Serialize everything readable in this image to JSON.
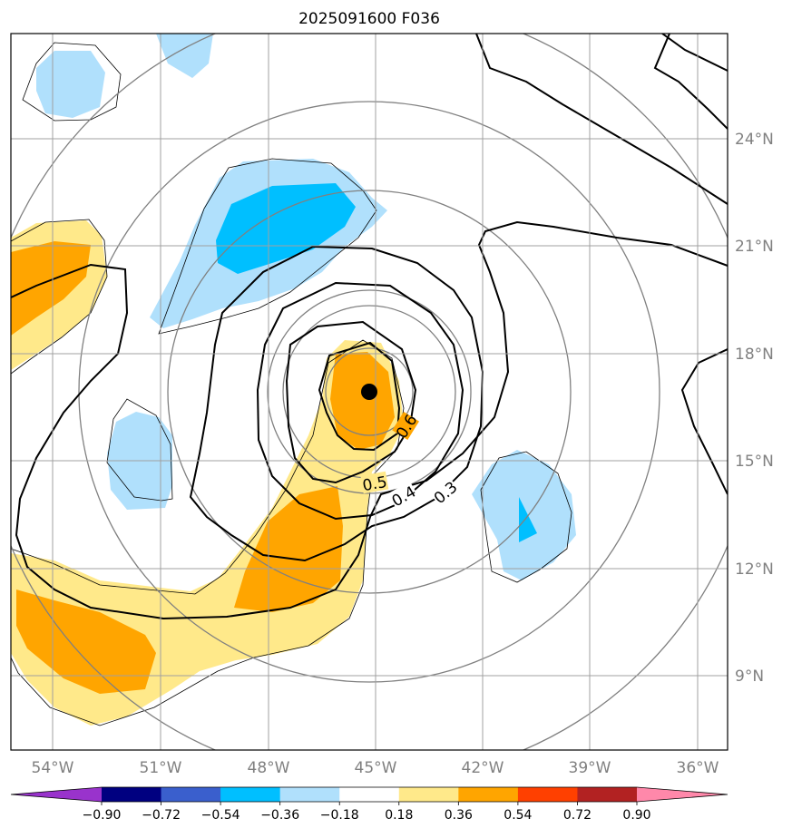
{
  "chart_data": {
    "type": "contour",
    "title": "2025091600 F036",
    "x_ticks": [
      "54°W",
      "51°W",
      "48°W",
      "45°W",
      "42°W",
      "39°W",
      "36°W"
    ],
    "x_tick_values": [
      -54,
      -51,
      -48,
      -45,
      -42,
      -39,
      -36
    ],
    "y_ticks": [
      "24°N",
      "21°N",
      "18°N",
      "15°N",
      "12°N",
      "9°N"
    ],
    "y_tick_values": [
      24,
      21,
      18,
      15,
      12,
      9
    ],
    "xlim": [
      -55.2,
      -35.2
    ],
    "ylim": [
      6.9,
      26.9
    ],
    "grid": true,
    "center_marker": {
      "lon": -45.0,
      "lat": 16.9
    },
    "range_rings_deg": [
      1,
      2,
      3,
      5,
      7,
      9
    ],
    "line_contour_labels": [
      {
        "text": "0.6",
        "lon": -44.0,
        "lat": 16.1,
        "angle": -58
      },
      {
        "text": "0.5",
        "lon": -45.2,
        "lat": 14.4,
        "angle": -10
      },
      {
        "text": "0.4",
        "lon": -44.3,
        "lat": 13.9,
        "angle": -30
      },
      {
        "text": "0.3",
        "lon": -43.1,
        "lat": 14.1,
        "angle": -40
      }
    ],
    "colorbar": {
      "levels": [
        -0.9,
        -0.72,
        -0.54,
        -0.36,
        -0.18,
        0.18,
        0.36,
        0.54,
        0.72,
        0.9
      ],
      "tick_labels": [
        "−0.90",
        "−0.72",
        "−0.54",
        "−0.36",
        "−0.18",
        "0.18",
        "0.36",
        "0.54",
        "0.72",
        "0.90"
      ],
      "colors": [
        "#9933cc",
        "#000080",
        "#3a5fcd",
        "#00bfff",
        "#b0e0fc",
        "#ffffff",
        "#ffe98a",
        "#ffa500",
        "#ff4000",
        "#b22222",
        "#ff88aa"
      ],
      "extend": "both"
    }
  }
}
